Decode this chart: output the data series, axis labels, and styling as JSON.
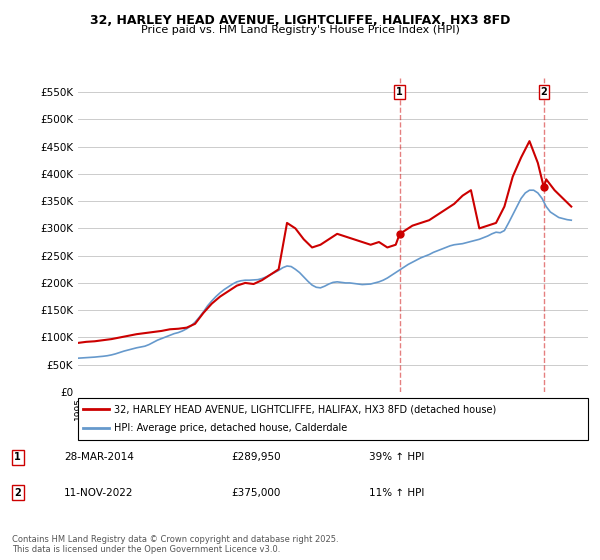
{
  "title": "32, HARLEY HEAD AVENUE, LIGHTCLIFFE, HALIFAX, HX3 8FD",
  "subtitle": "Price paid vs. HM Land Registry's House Price Index (HPI)",
  "ylabel_ticks": [
    "£0",
    "£50K",
    "£100K",
    "£150K",
    "£200K",
    "£250K",
    "£300K",
    "£350K",
    "£400K",
    "£450K",
    "£500K",
    "£550K"
  ],
  "ytick_values": [
    0,
    50000,
    100000,
    150000,
    200000,
    250000,
    300000,
    350000,
    400000,
    450000,
    500000,
    550000
  ],
  "ylim": [
    0,
    575000
  ],
  "sale1_date": "2014-03-28",
  "sale1_label": "28-MAR-2014",
  "sale1_price": 289950,
  "sale1_hpi_pct": "39% ↑ HPI",
  "sale2_date": "2022-11-11",
  "sale2_label": "11-NOV-2022",
  "sale2_price": 375000,
  "sale2_hpi_pct": "11% ↑ HPI",
  "sale1_x": 2014.24,
  "sale2_x": 2022.86,
  "line1_color": "#cc0000",
  "line2_color": "#6699cc",
  "vline_color": "#cc0000",
  "vline_alpha": 0.5,
  "background_color": "#ffffff",
  "grid_color": "#cccccc",
  "legend_label1": "32, HARLEY HEAD AVENUE, LIGHTCLIFFE, HALIFAX, HX3 8FD (detached house)",
  "legend_label2": "HPI: Average price, detached house, Calderdale",
  "footer": "Contains HM Land Registry data © Crown copyright and database right 2025.\nThis data is licensed under the Open Government Licence v3.0.",
  "hpi_data": {
    "years": [
      1995.0,
      1995.25,
      1995.5,
      1995.75,
      1996.0,
      1996.25,
      1996.5,
      1996.75,
      1997.0,
      1997.25,
      1997.5,
      1997.75,
      1998.0,
      1998.25,
      1998.5,
      1998.75,
      1999.0,
      1999.25,
      1999.5,
      1999.75,
      2000.0,
      2000.25,
      2000.5,
      2000.75,
      2001.0,
      2001.25,
      2001.5,
      2001.75,
      2002.0,
      2002.25,
      2002.5,
      2002.75,
      2003.0,
      2003.25,
      2003.5,
      2003.75,
      2004.0,
      2004.25,
      2004.5,
      2004.75,
      2005.0,
      2005.25,
      2005.5,
      2005.75,
      2006.0,
      2006.25,
      2006.5,
      2006.75,
      2007.0,
      2007.25,
      2007.5,
      2007.75,
      2008.0,
      2008.25,
      2008.5,
      2008.75,
      2009.0,
      2009.25,
      2009.5,
      2009.75,
      2010.0,
      2010.25,
      2010.5,
      2010.75,
      2011.0,
      2011.25,
      2011.5,
      2011.75,
      2012.0,
      2012.25,
      2012.5,
      2012.75,
      2013.0,
      2013.25,
      2013.5,
      2013.75,
      2014.0,
      2014.25,
      2014.5,
      2014.75,
      2015.0,
      2015.25,
      2015.5,
      2015.75,
      2016.0,
      2016.25,
      2016.5,
      2016.75,
      2017.0,
      2017.25,
      2017.5,
      2017.75,
      2018.0,
      2018.25,
      2018.5,
      2018.75,
      2019.0,
      2019.25,
      2019.5,
      2019.75,
      2020.0,
      2020.25,
      2020.5,
      2020.75,
      2021.0,
      2021.25,
      2021.5,
      2021.75,
      2022.0,
      2022.25,
      2022.5,
      2022.75,
      2023.0,
      2023.25,
      2023.5,
      2023.75,
      2024.0,
      2024.25,
      2024.5
    ],
    "values": [
      62000,
      62500,
      63000,
      63500,
      64000,
      64800,
      65500,
      66500,
      68000,
      70000,
      72500,
      75000,
      77000,
      79000,
      81000,
      82500,
      84000,
      87000,
      91000,
      95000,
      98000,
      101000,
      104000,
      107000,
      109000,
      112000,
      116000,
      121000,
      128000,
      137000,
      147000,
      158000,
      167000,
      175000,
      182000,
      188000,
      193000,
      198000,
      202000,
      204000,
      205000,
      205000,
      205500,
      206000,
      208000,
      211000,
      215000,
      219000,
      223000,
      228000,
      231000,
      230000,
      225000,
      219000,
      211000,
      203000,
      196000,
      192000,
      191000,
      194000,
      198000,
      201000,
      202000,
      201000,
      200000,
      200000,
      199000,
      198000,
      197000,
      197500,
      198000,
      200000,
      202000,
      205000,
      209000,
      214000,
      219000,
      224000,
      229000,
      234000,
      238000,
      242000,
      246000,
      249000,
      252000,
      256000,
      259000,
      262000,
      265000,
      268000,
      270000,
      271000,
      272000,
      274000,
      276000,
      278000,
      280000,
      283000,
      286000,
      290000,
      293000,
      292000,
      296000,
      310000,
      325000,
      340000,
      355000,
      365000,
      370000,
      370000,
      365000,
      355000,
      340000,
      330000,
      325000,
      320000,
      318000,
      316000,
      315000
    ]
  },
  "price_data": {
    "years": [
      1995.0,
      1995.5,
      1996.0,
      1996.5,
      1997.0,
      1997.5,
      1998.0,
      1998.5,
      1999.0,
      1999.5,
      2000.0,
      2000.5,
      2001.0,
      2001.5,
      2002.0,
      2002.5,
      2003.0,
      2003.5,
      2004.0,
      2004.5,
      2005.0,
      2005.5,
      2006.0,
      2006.5,
      2007.0,
      2007.5,
      2008.0,
      2008.5,
      2009.0,
      2009.5,
      2010.0,
      2010.5,
      2011.0,
      2011.5,
      2012.0,
      2012.5,
      2013.0,
      2013.5,
      2014.0,
      2014.24,
      2014.5,
      2015.0,
      2015.5,
      2016.0,
      2016.5,
      2017.0,
      2017.5,
      2018.0,
      2018.5,
      2019.0,
      2019.5,
      2020.0,
      2020.5,
      2021.0,
      2021.5,
      2022.0,
      2022.5,
      2022.86,
      2023.0,
      2023.5,
      2024.0,
      2024.5
    ],
    "values": [
      90000,
      92000,
      93000,
      95000,
      97000,
      100000,
      103000,
      106000,
      108000,
      110000,
      112000,
      115000,
      116000,
      118000,
      125000,
      145000,
      162000,
      175000,
      185000,
      195000,
      200000,
      198000,
      205000,
      215000,
      225000,
      310000,
      300000,
      280000,
      265000,
      270000,
      280000,
      290000,
      285000,
      280000,
      275000,
      270000,
      275000,
      265000,
      270000,
      289950,
      295000,
      305000,
      310000,
      315000,
      325000,
      335000,
      345000,
      360000,
      370000,
      300000,
      305000,
      310000,
      340000,
      395000,
      430000,
      460000,
      420000,
      375000,
      390000,
      370000,
      355000,
      340000
    ]
  }
}
